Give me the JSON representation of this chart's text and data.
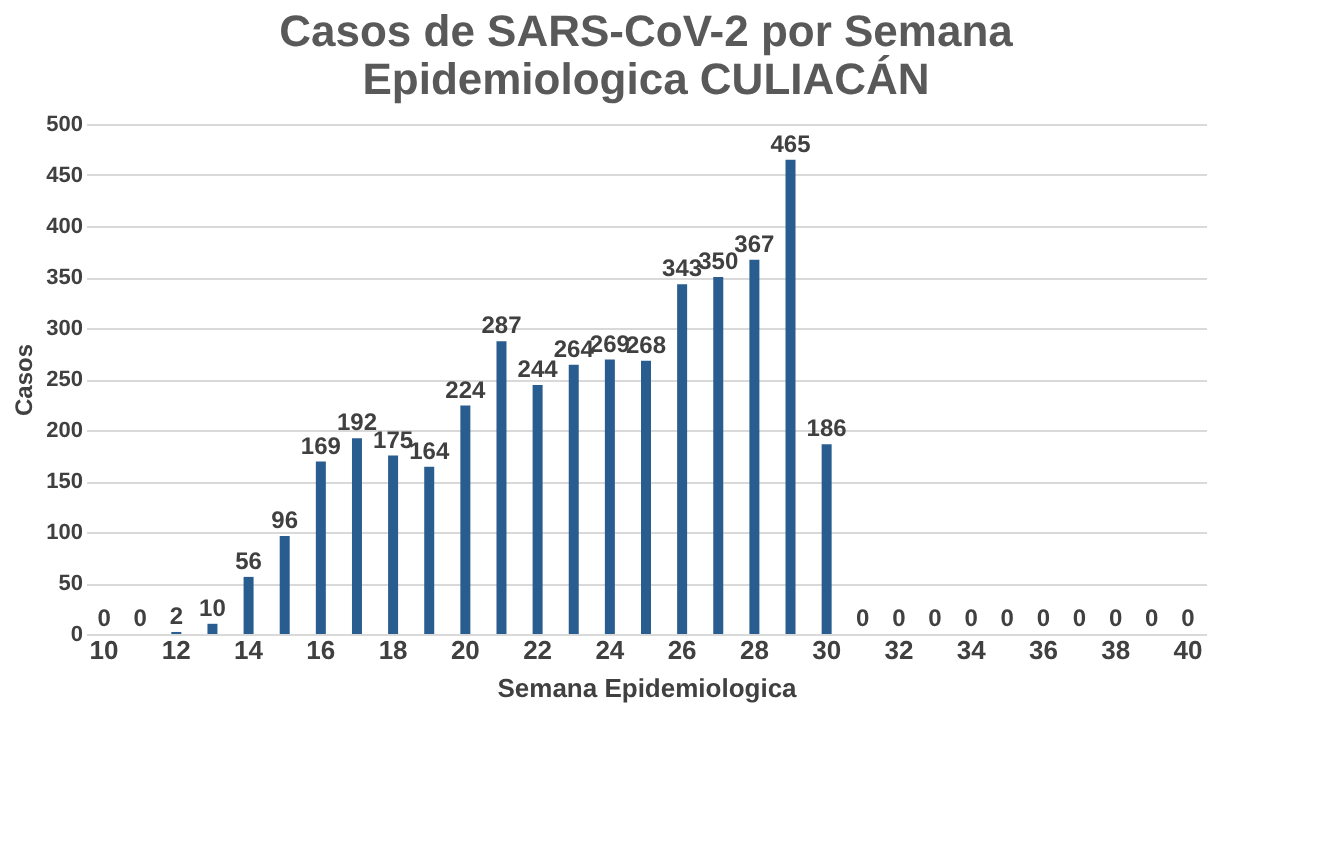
{
  "chart_data": {
    "type": "bar",
    "title": [
      "Casos de SARS-CoV-2 por Semana",
      "Epidemiologica CULIACÁN"
    ],
    "xlabel": "Semana Epidemiologica",
    "ylabel": "Casos",
    "categories": [
      "10",
      null,
      "12",
      null,
      "14",
      null,
      "16",
      null,
      "18",
      null,
      "20",
      null,
      "22",
      null,
      "24",
      null,
      "26",
      null,
      "28",
      null,
      "30",
      null,
      "32",
      null,
      "34",
      null,
      "36",
      null,
      "38",
      null,
      "40"
    ],
    "values": [
      0,
      0,
      2,
      10,
      56,
      96,
      169,
      192,
      175,
      164,
      224,
      287,
      244,
      264,
      269,
      268,
      343,
      350,
      367,
      465,
      186,
      0,
      0,
      0,
      0,
      0,
      0,
      0,
      0,
      0,
      0
    ],
    "color": "#2a5d8f",
    "ylim": [
      0,
      500
    ],
    "yticks": [
      0,
      50,
      100,
      150,
      200,
      250,
      300,
      350,
      400,
      450,
      500
    ],
    "grid": "y",
    "data_labels": true
  }
}
